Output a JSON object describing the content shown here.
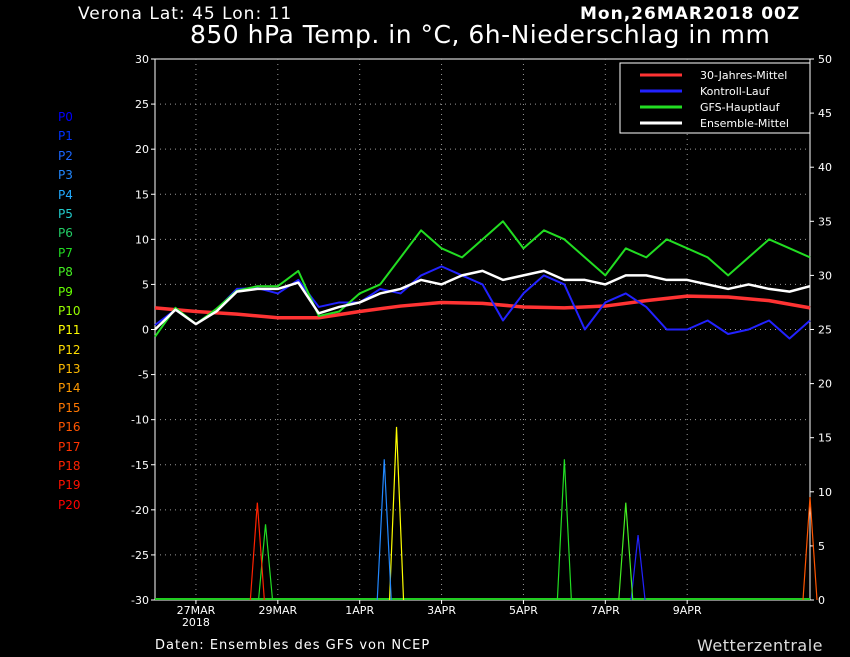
{
  "header": {
    "location": "Verona   Lat: 45 Lon: 11",
    "run": "Mon,26MAR2018 00Z",
    "title": "850 hPa Temp. in °C, 6h-Niederschlag in mm"
  },
  "footer": {
    "source": "Daten: Ensembles des GFS von NCEP",
    "brand": "Wetterzentrale"
  },
  "members": [
    {
      "label": "P0",
      "color": "#0000ff"
    },
    {
      "label": "P1",
      "color": "#0033ff"
    },
    {
      "label": "P2",
      "color": "#1a66ff"
    },
    {
      "label": "P3",
      "color": "#2288ff"
    },
    {
      "label": "P4",
      "color": "#22aaff"
    },
    {
      "label": "P5",
      "color": "#22cccc"
    },
    {
      "label": "P6",
      "color": "#22cc66"
    },
    {
      "label": "P7",
      "color": "#22dd22"
    },
    {
      "label": "P8",
      "color": "#44ee22"
    },
    {
      "label": "P9",
      "color": "#66ff00"
    },
    {
      "label": "P10",
      "color": "#99ff00"
    },
    {
      "label": "P11",
      "color": "#ffff00"
    },
    {
      "label": "P12",
      "color": "#ffdd00"
    },
    {
      "label": "P13",
      "color": "#ffbb00"
    },
    {
      "label": "P14",
      "color": "#ff9900"
    },
    {
      "label": "P15",
      "color": "#ff7700"
    },
    {
      "label": "P16",
      "color": "#ff5500"
    },
    {
      "label": "P17",
      "color": "#ff3300"
    },
    {
      "label": "P18",
      "color": "#ff2200"
    },
    {
      "label": "P19",
      "color": "#ff1100"
    },
    {
      "label": "P20",
      "color": "#ff0000"
    }
  ],
  "chart_data": {
    "type": "line",
    "title": "850 hPa Temp. in °C, 6h-Niederschlag in mm",
    "x_ticks": [
      "27MAR",
      "29MAR",
      "1APR",
      "3APR",
      "5APR",
      "7APR",
      "9APR"
    ],
    "x_year_label": "2018",
    "x_range_days": [
      0,
      16
    ],
    "y_left": {
      "label": "",
      "ylim": [
        -30,
        30
      ],
      "ticks": [
        30,
        25,
        20,
        15,
        10,
        5,
        0,
        -5,
        -10,
        -15,
        -20,
        -25,
        -30
      ]
    },
    "y_right": {
      "label": "",
      "ylim": [
        0,
        50
      ],
      "ticks": [
        50,
        45,
        40,
        35,
        30,
        25,
        20,
        15,
        10,
        5,
        0
      ]
    },
    "grid": true,
    "legend": {
      "placement": "top-right"
    },
    "series": [
      {
        "name": "30-Jahres-Mittel",
        "color": "#ff3333",
        "axis": "left",
        "x": [
          0,
          1,
          2,
          3,
          4,
          5,
          6,
          7,
          8,
          9,
          10,
          11,
          12,
          13,
          14,
          15,
          16
        ],
        "y": [
          2.4,
          2.0,
          1.7,
          1.3,
          1.3,
          2.0,
          2.6,
          3.0,
          2.9,
          2.5,
          2.4,
          2.6,
          3.2,
          3.7,
          3.6,
          3.2,
          2.4
        ]
      },
      {
        "name": "Kontroll-Lauf",
        "color": "#2222ff",
        "axis": "left",
        "x": [
          0,
          0.5,
          1,
          1.5,
          2,
          2.5,
          3,
          3.5,
          4,
          4.5,
          5,
          5.5,
          6,
          6.5,
          7,
          7.5,
          8,
          8.5,
          9,
          9.5,
          10,
          10.5,
          11,
          11.5,
          12,
          12.5,
          13,
          13.5,
          14,
          14.5,
          15,
          15.5,
          16
        ],
        "y": [
          0.5,
          2.2,
          0.6,
          2.2,
          4.5,
          4.6,
          4.0,
          5.5,
          2.5,
          3.0,
          3.0,
          4.5,
          4.0,
          6.0,
          7.0,
          6.0,
          5.0,
          1.0,
          4.0,
          6.0,
          5.0,
          0.0,
          3.0,
          4.0,
          2.5,
          0.0,
          0.0,
          1.0,
          -0.5,
          0.0,
          1.0,
          -1.0,
          1.0
        ]
      },
      {
        "name": "GFS-Hauptlauf",
        "color": "#22dd22",
        "axis": "left",
        "x": [
          0,
          0.5,
          1,
          1.5,
          2,
          2.5,
          3,
          3.5,
          4,
          4.5,
          5,
          5.5,
          6,
          6.5,
          7,
          7.5,
          8,
          8.5,
          9,
          9.5,
          10,
          10.5,
          11,
          11.5,
          12,
          12.5,
          13,
          13.5,
          14,
          14.5,
          15,
          15.5,
          16
        ],
        "y": [
          -0.8,
          2.4,
          0.6,
          2.3,
          4.3,
          4.8,
          4.8,
          6.5,
          1.5,
          2.0,
          4.0,
          5.0,
          8.0,
          11.0,
          9.0,
          8.0,
          10.0,
          12.0,
          9.0,
          11.0,
          10.0,
          8.0,
          6.0,
          9.0,
          8.0,
          10.0,
          9.0,
          8.0,
          6.0,
          8.0,
          10.0,
          9.0,
          8.0
        ]
      },
      {
        "name": "Ensemble-Mittel",
        "color": "#ffffff",
        "axis": "left",
        "x": [
          0,
          0.5,
          1,
          1.5,
          2,
          2.5,
          3,
          3.5,
          4,
          4.5,
          5,
          5.5,
          6,
          6.5,
          7,
          7.5,
          8,
          8.5,
          9,
          9.5,
          10,
          10.5,
          11,
          11.5,
          12,
          12.5,
          13,
          13.5,
          14,
          14.5,
          15,
          15.5,
          16
        ],
        "y": [
          0.0,
          2.2,
          0.6,
          2.0,
          4.2,
          4.5,
          4.5,
          5.2,
          1.8,
          2.5,
          3.0,
          4.0,
          4.5,
          5.5,
          5.0,
          6.0,
          6.5,
          5.5,
          6.0,
          6.5,
          5.5,
          5.5,
          5.0,
          6.0,
          6.0,
          5.5,
          5.5,
          5.0,
          4.5,
          5.0,
          4.5,
          4.2,
          4.8
        ]
      }
    ],
    "precip_peaks": [
      {
        "name": "P11",
        "x": 5.9,
        "y": 16.0
      },
      {
        "name": "P3",
        "x": 5.6,
        "y": 13.0
      },
      {
        "name": "P7",
        "x": 10.0,
        "y": 13.0
      },
      {
        "name": "P7",
        "x": 2.7,
        "y": 7.0
      },
      {
        "name": "P18",
        "x": 2.5,
        "y": 9.0
      },
      {
        "name": "Kontroll-Lauf",
        "x": 11.8,
        "y": 6.0
      },
      {
        "name": "P8",
        "x": 11.5,
        "y": 9.0
      },
      {
        "name": "P16",
        "x": 16.0,
        "y": 9.5
      }
    ]
  }
}
